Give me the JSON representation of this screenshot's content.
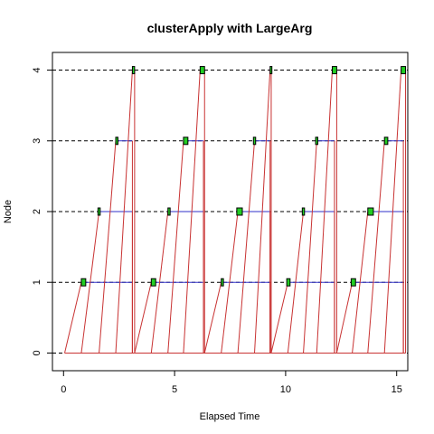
{
  "chart_data": {
    "type": "timeline",
    "title": "clusterApply with LargeArg",
    "xlabel": "Elapsed Time",
    "ylabel": "Node",
    "xlim": [
      -0.5,
      15.5
    ],
    "ylim": [
      -0.25,
      4.25
    ],
    "xticks": [
      0,
      5,
      10,
      15
    ],
    "yticks": [
      0,
      1,
      2,
      3,
      4
    ],
    "gridlines": "dashed-horizontal",
    "colors": {
      "send_line": "#c83232",
      "compute_line": "#3232c8",
      "compute_box": "#22cc22",
      "box_border": "#000000",
      "grid": "#000000"
    },
    "rounds": [
      {
        "master_start": 0.05,
        "master_end": 3.2,
        "tasks": [
          {
            "node": 1,
            "send_start": 0.05,
            "arrive": 0.8,
            "box_start": 0.8,
            "box_end": 1.0,
            "compute_end": 3.1,
            "return_time": 3.1
          },
          {
            "node": 2,
            "send_start": 0.8,
            "arrive": 1.6,
            "box_start": 1.55,
            "box_end": 1.65,
            "compute_end": 3.1,
            "return_time": 3.1
          },
          {
            "node": 3,
            "send_start": 1.6,
            "arrive": 2.35,
            "box_start": 2.35,
            "box_end": 2.45,
            "compute_end": 3.1,
            "return_time": 3.1
          },
          {
            "node": 4,
            "send_start": 2.35,
            "arrive": 3.1,
            "box_start": 3.1,
            "box_end": 3.2,
            "compute_end": 3.2,
            "return_time": 3.2
          }
        ]
      },
      {
        "master_start": 3.2,
        "master_end": 6.35,
        "tasks": [
          {
            "node": 1,
            "send_start": 3.2,
            "arrive": 3.95,
            "box_start": 3.95,
            "box_end": 4.15,
            "compute_end": 6.3,
            "return_time": 6.3
          },
          {
            "node": 2,
            "send_start": 3.95,
            "arrive": 4.7,
            "box_start": 4.7,
            "box_end": 4.8,
            "compute_end": 6.3,
            "return_time": 6.3
          },
          {
            "node": 3,
            "send_start": 4.7,
            "arrive": 5.4,
            "box_start": 5.4,
            "box_end": 5.6,
            "compute_end": 6.3,
            "return_time": 6.3
          },
          {
            "node": 4,
            "send_start": 5.4,
            "arrive": 6.15,
            "box_start": 6.15,
            "box_end": 6.35,
            "compute_end": 6.35,
            "return_time": 6.35
          }
        ]
      },
      {
        "master_start": 6.35,
        "master_end": 9.35,
        "tasks": [
          {
            "node": 1,
            "send_start": 6.35,
            "arrive": 7.1,
            "box_start": 7.1,
            "box_end": 7.2,
            "compute_end": 9.3,
            "return_time": 9.3
          },
          {
            "node": 2,
            "send_start": 7.1,
            "arrive": 7.85,
            "box_start": 7.8,
            "box_end": 8.05,
            "compute_end": 9.3,
            "return_time": 9.3
          },
          {
            "node": 3,
            "send_start": 7.85,
            "arrive": 8.6,
            "box_start": 8.55,
            "box_end": 8.65,
            "compute_end": 9.3,
            "return_time": 9.3
          },
          {
            "node": 4,
            "send_start": 8.6,
            "arrive": 9.3,
            "box_start": 9.3,
            "box_end": 9.35,
            "compute_end": 9.35,
            "return_time": 9.35
          }
        ]
      },
      {
        "master_start": 9.35,
        "master_end": 12.3,
        "tasks": [
          {
            "node": 1,
            "send_start": 9.35,
            "arrive": 10.1,
            "box_start": 10.05,
            "box_end": 10.2,
            "compute_end": 12.2,
            "return_time": 12.2
          },
          {
            "node": 2,
            "send_start": 10.1,
            "arrive": 10.8,
            "box_start": 10.75,
            "box_end": 10.85,
            "compute_end": 12.2,
            "return_time": 12.2
          },
          {
            "node": 3,
            "send_start": 10.8,
            "arrive": 11.4,
            "box_start": 11.35,
            "box_end": 11.45,
            "compute_end": 12.2,
            "return_time": 12.2
          },
          {
            "node": 4,
            "send_start": 11.4,
            "arrive": 12.1,
            "box_start": 12.1,
            "box_end": 12.3,
            "compute_end": 12.3,
            "return_time": 12.3
          }
        ]
      },
      {
        "master_start": 12.3,
        "master_end": 15.4,
        "tasks": [
          {
            "node": 1,
            "send_start": 12.3,
            "arrive": 13.0,
            "box_start": 12.95,
            "box_end": 13.15,
            "compute_end": 15.3,
            "return_time": 15.3
          },
          {
            "node": 2,
            "send_start": 13.0,
            "arrive": 13.7,
            "box_start": 13.7,
            "box_end": 13.95,
            "compute_end": 15.3,
            "return_time": 15.3
          },
          {
            "node": 3,
            "send_start": 13.7,
            "arrive": 14.45,
            "box_start": 14.45,
            "box_end": 14.6,
            "compute_end": 15.3,
            "return_time": 15.3
          },
          {
            "node": 4,
            "send_start": 14.45,
            "arrive": 15.2,
            "box_start": 15.2,
            "box_end": 15.4,
            "compute_end": 15.4,
            "return_time": 15.4
          }
        ]
      }
    ]
  }
}
